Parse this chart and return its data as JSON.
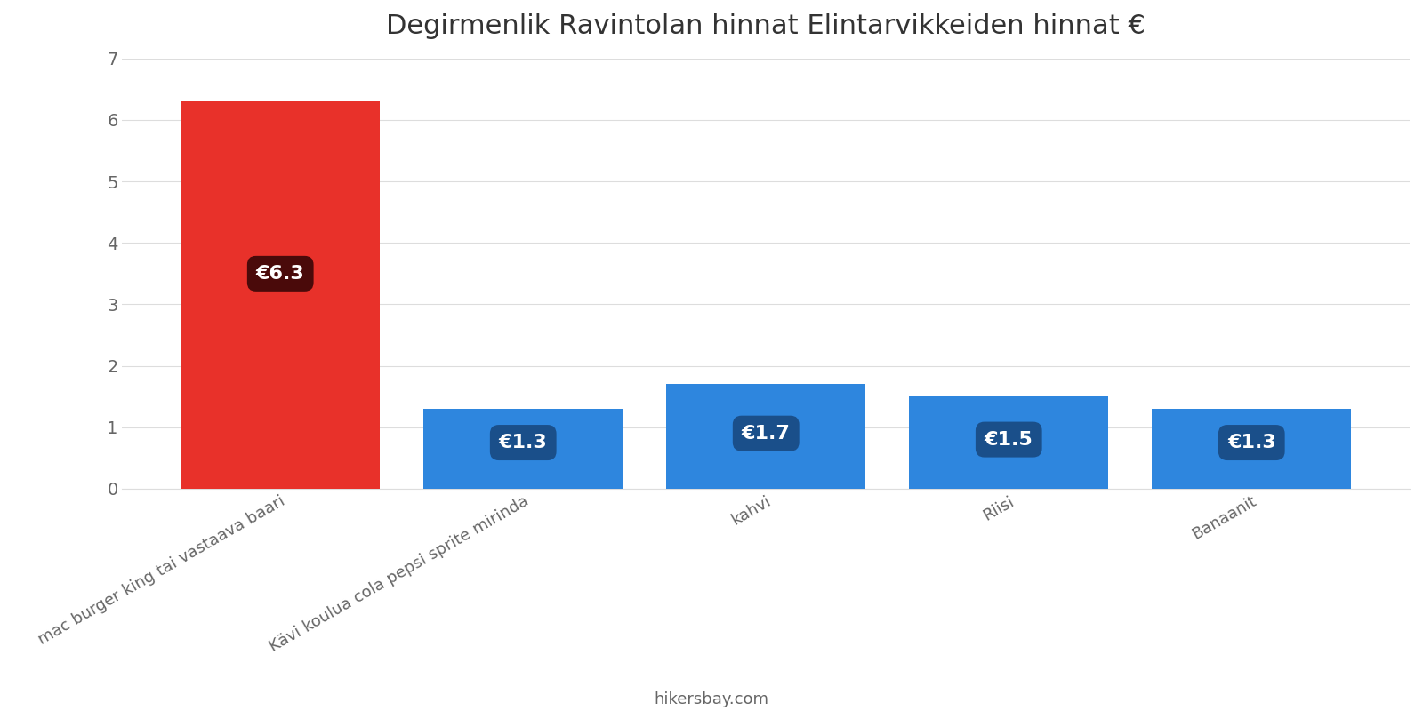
{
  "title": "Degirmenlik Ravintolan hinnat Elintarvikkeiden hinnat €",
  "categories": [
    "mac burger king tai vastaava baari",
    "Kävi koulua cola pepsi sprite mirinda",
    "kahvi",
    "Riisi",
    "Banaanit"
  ],
  "values": [
    6.3,
    1.3,
    1.7,
    1.5,
    1.3
  ],
  "bar_colors": [
    "#e8312a",
    "#2e86de",
    "#2e86de",
    "#2e86de",
    "#2e86de"
  ],
  "label_box_colors": [
    "#4a0a0a",
    "#1a4f8a",
    "#1a4f8a",
    "#1a4f8a",
    "#1a4f8a"
  ],
  "labels": [
    "€6.3",
    "€1.3",
    "€1.7",
    "€1.5",
    "€1.3"
  ],
  "label_y_positions": [
    3.5,
    0.75,
    0.9,
    0.8,
    0.75
  ],
  "ylim": [
    0,
    7
  ],
  "yticks": [
    0,
    1,
    2,
    3,
    4,
    5,
    6,
    7
  ],
  "title_fontsize": 22,
  "tick_fontsize": 14,
  "label_fontsize": 16,
  "xlabel_fontsize": 13,
  "footer_text": "hikersbay.com",
  "background_color": "#ffffff",
  "grid_color": "#dddddd",
  "text_color": "#666666"
}
